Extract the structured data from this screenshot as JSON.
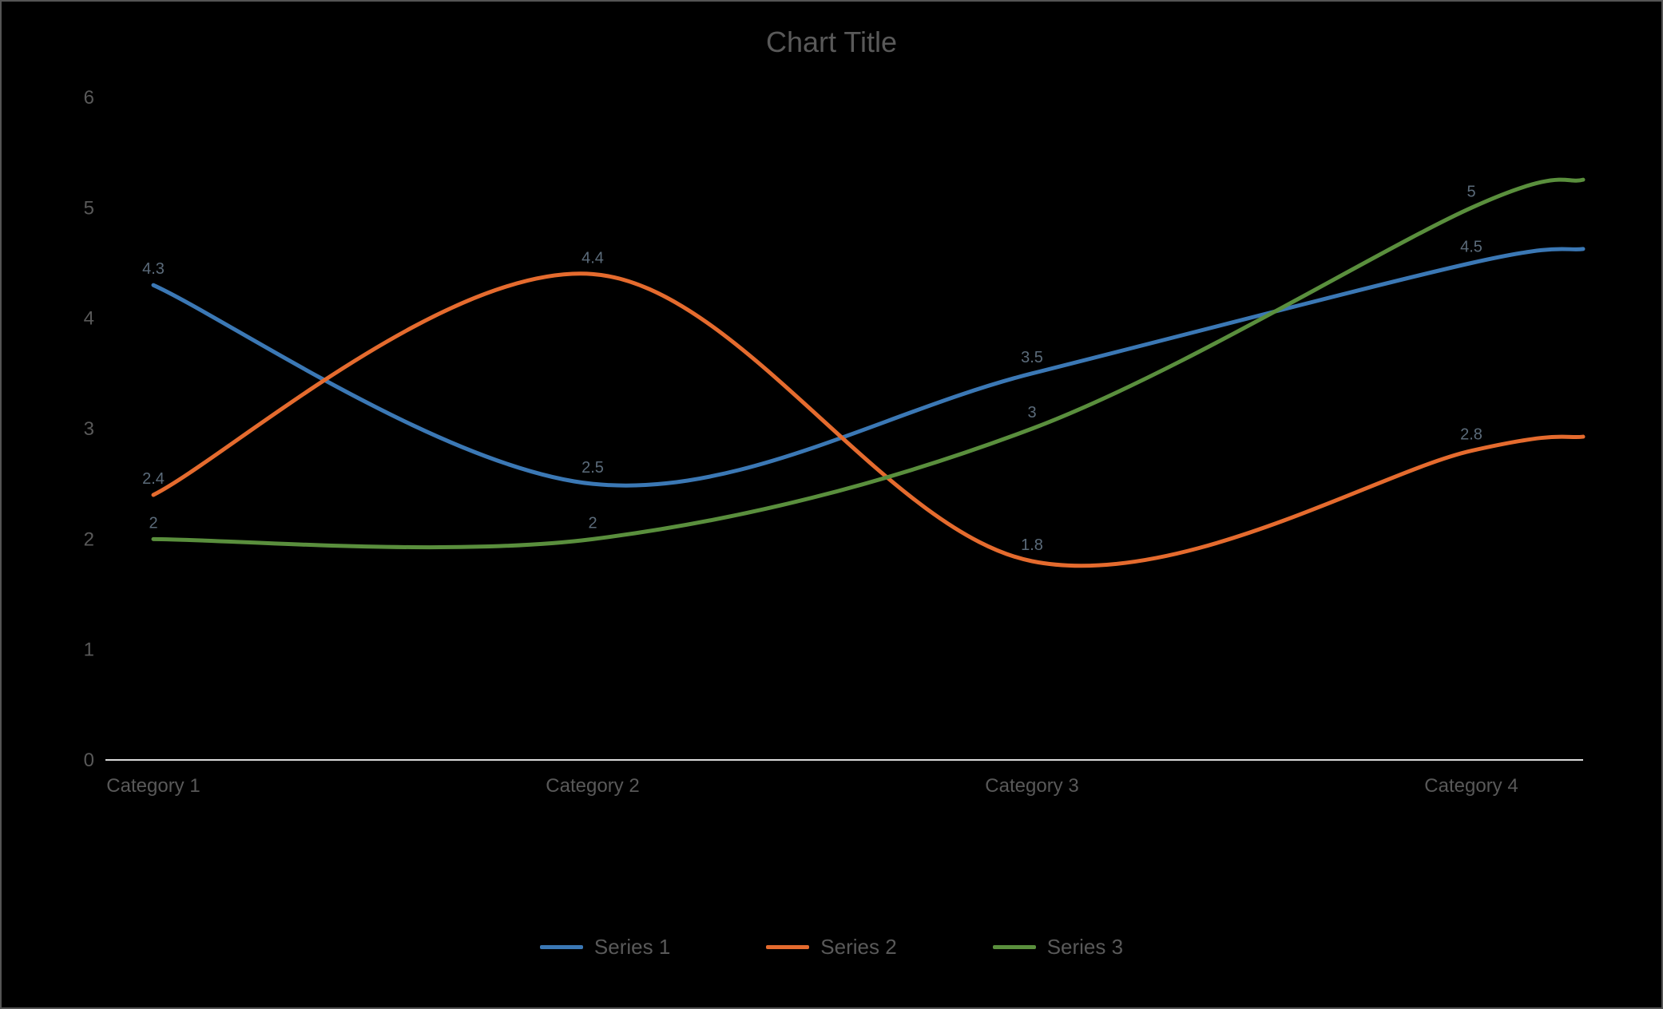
{
  "chart": {
    "type": "line",
    "title": "Chart Title",
    "background_color": "#000000",
    "border_color": "#555555",
    "text_color": "#595959",
    "axis_color": "#d9d9d9",
    "line_width": 5,
    "smoothing": "cubic",
    "x": {
      "categories": [
        "Category 1",
        "Category 2",
        "Category 3",
        "Category 4"
      ],
      "label_fontsize": 24
    },
    "y": {
      "min": 0,
      "max": 6,
      "tick_step": 1,
      "ticks": [
        0,
        1,
        2,
        3,
        4,
        5,
        6
      ],
      "label_fontsize": 24
    },
    "series": [
      {
        "name": "Series 1",
        "color": "#3b78b5",
        "values": [
          4.3,
          2.5,
          3.5,
          4.5
        ]
      },
      {
        "name": "Series 2",
        "color": "#e56b2e",
        "values": [
          2.4,
          4.4,
          1.8,
          2.8
        ]
      },
      {
        "name": "Series 3",
        "color": "#5a8f3d",
        "values": [
          2.0,
          2.0,
          3.0,
          5.0
        ]
      }
    ],
    "point_labels": {
      "color": "#5b6b7a",
      "fontsize": 20,
      "dy": -14
    },
    "legend": {
      "position": "bottom",
      "swatch_width": 54,
      "swatch_height": 5,
      "fontsize": 26
    },
    "title_fontsize": 36
  }
}
